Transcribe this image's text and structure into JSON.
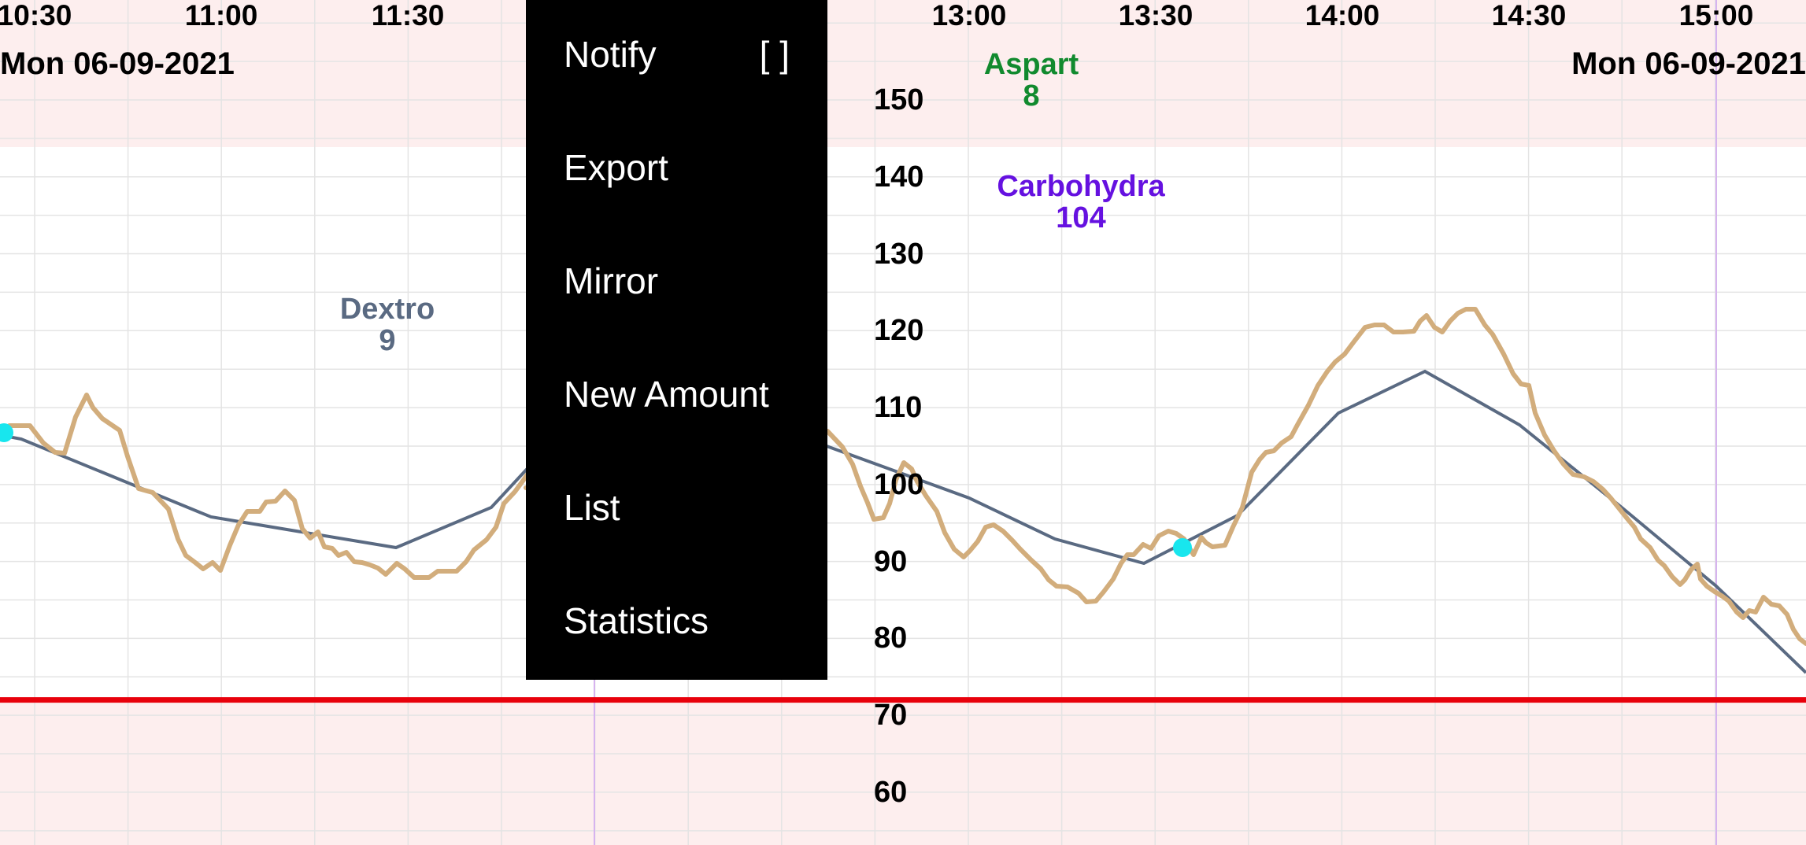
{
  "chart": {
    "time_labels": [
      "10:30",
      "11:00",
      "11:30",
      "13:00",
      "13:30",
      "14:00",
      "14:30",
      "15:00"
    ],
    "date_left": "Mon 06-09-2021",
    "date_right": "Mon 06-09-2021",
    "y_labels": [
      "150",
      "140",
      "130",
      "120",
      "110",
      "100",
      "90",
      "80",
      "70",
      "60"
    ],
    "low_threshold": 72,
    "events": {
      "dextro": {
        "name": "Dextro",
        "value": "9",
        "color": "#5a6a82"
      },
      "aspart": {
        "name": "Aspart",
        "value": "8",
        "color": "#118a2e"
      },
      "carbs": {
        "name": "Carbohydra",
        "value": "104",
        "color": "#6511e0"
      }
    },
    "colors": {
      "band": "#fdeeee",
      "grid": "#e4e4e4",
      "sensor_line": "#d2ad7c",
      "trend_line": "#5a6a82",
      "threshold_line": "#e8000b",
      "marker": "#18e6ee",
      "day_line": "#d6b3ef"
    }
  },
  "menu": {
    "items": [
      {
        "label": "Notify",
        "suffix": "[ ]"
      },
      {
        "label": "Export"
      },
      {
        "label": "Mirror"
      },
      {
        "label": "New Amount"
      },
      {
        "label": "List"
      },
      {
        "label": "Statistics"
      }
    ]
  }
}
